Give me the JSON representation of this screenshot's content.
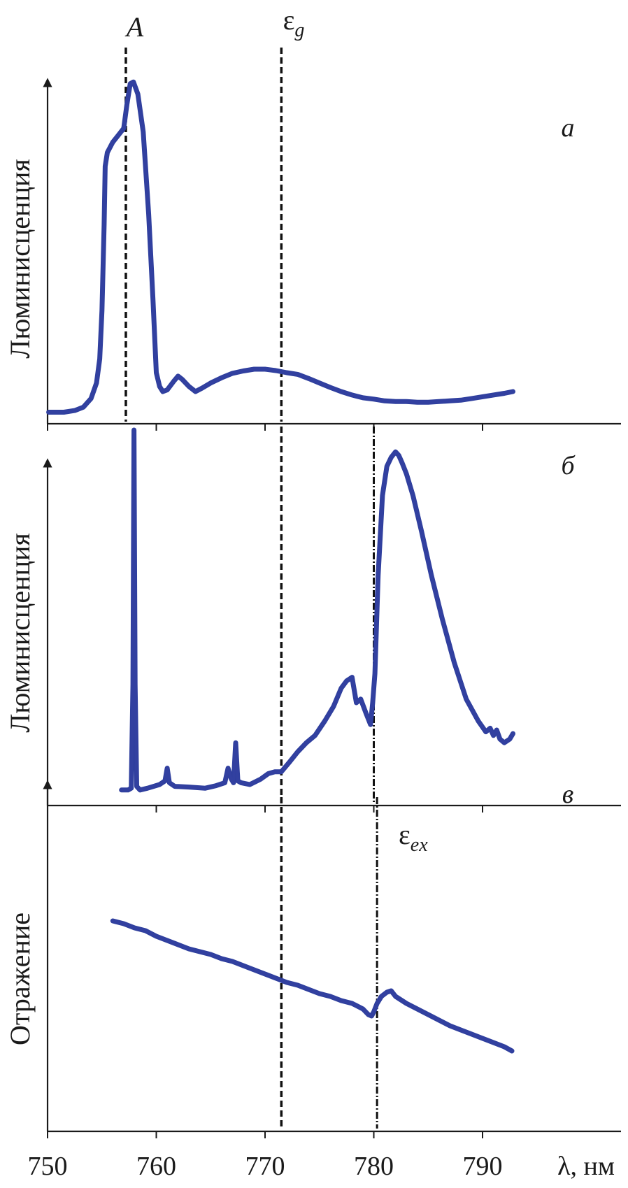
{
  "chart_data": [
    {
      "type": "line",
      "panel_label": "а",
      "ylabel": "Люминисценция",
      "xlabel": "λ, нм",
      "xlim": [
        750,
        820
      ],
      "x_ticks": [
        750,
        760,
        770,
        780,
        790
      ],
      "ylim": [
        0,
        1
      ],
      "markers": [
        {
          "x": 757.2,
          "label": "A",
          "style": "dashed"
        },
        {
          "x": 771.5,
          "label": "ε",
          "subscript": "g",
          "style": "dashed"
        }
      ],
      "series": [
        {
          "x": [
            750.1,
            751.5,
            752.5,
            753.3,
            754.0,
            754.5,
            754.8,
            755.0,
            755.2,
            755.3,
            755.5,
            756.0,
            756.5,
            757.0,
            757.3,
            757.6,
            757.9,
            758.3,
            758.8,
            759.3,
            759.7,
            760.0,
            760.3,
            760.6,
            761.0,
            761.6,
            762.0,
            762.4,
            763.0,
            763.6,
            764.2,
            765.0,
            766.0,
            767.0,
            768.0,
            769.0,
            770.0,
            771.0,
            772.0,
            773.0,
            774.0,
            775.0,
            776.0,
            777.0,
            778.0,
            779.0,
            780.0,
            781.0,
            782.0,
            783.0,
            784.0,
            785.0,
            786.0,
            787.0,
            788.0,
            789.0,
            790.0,
            791.0,
            792.0,
            792.8
          ],
          "y": [
            0.005,
            0.005,
            0.01,
            0.02,
            0.045,
            0.09,
            0.16,
            0.3,
            0.55,
            0.72,
            0.76,
            0.79,
            0.81,
            0.83,
            0.9,
            0.96,
            0.965,
            0.93,
            0.82,
            0.58,
            0.33,
            0.12,
            0.08,
            0.065,
            0.07,
            0.095,
            0.11,
            0.1,
            0.08,
            0.065,
            0.075,
            0.09,
            0.105,
            0.118,
            0.125,
            0.13,
            0.13,
            0.126,
            0.12,
            0.115,
            0.103,
            0.09,
            0.077,
            0.065,
            0.055,
            0.047,
            0.043,
            0.038,
            0.036,
            0.036,
            0.034,
            0.034,
            0.036,
            0.038,
            0.04,
            0.045,
            0.05,
            0.055,
            0.06,
            0.065
          ]
        }
      ]
    },
    {
      "type": "line",
      "panel_label": "б",
      "ylabel": "Люминисценция",
      "xlabel": "λ, нм",
      "xlim": [
        750,
        820
      ],
      "x_ticks": [
        750,
        760,
        770,
        780,
        790
      ],
      "ylim": [
        0,
        1
      ],
      "markers": [
        {
          "x": 771.5,
          "label": "",
          "style": "dashed"
        },
        {
          "x": 780.0,
          "label": "",
          "style": "dashdot"
        }
      ],
      "series": [
        {
          "x": [
            756.8,
            757.4,
            757.7,
            757.85,
            757.95,
            758.05,
            758.2,
            758.5,
            759.2,
            760.3,
            760.8,
            761.0,
            761.2,
            761.7,
            763.0,
            764.5,
            765.5,
            766.3,
            766.6,
            766.9,
            767.1,
            767.3,
            767.5,
            767.8,
            768.6,
            769.6,
            770.3,
            770.9,
            771.5,
            772.2,
            773.0,
            773.8,
            774.6,
            775.5,
            776.3,
            777.0,
            777.5,
            778.0,
            778.4,
            778.8,
            779.3,
            779.7,
            779.9,
            780.1,
            780.4,
            780.8,
            781.2,
            781.6,
            782.0,
            782.3,
            782.6,
            783.0,
            783.6,
            784.4,
            785.3,
            786.3,
            787.4,
            788.5,
            789.6,
            790.3,
            790.7,
            791.0,
            791.3,
            791.6,
            792.0,
            792.5,
            792.8
          ],
          "y": [
            0.01,
            0.01,
            0.015,
            0.3,
            1.0,
            0.3,
            0.02,
            0.01,
            0.015,
            0.025,
            0.035,
            0.07,
            0.03,
            0.02,
            0.018,
            0.015,
            0.022,
            0.03,
            0.07,
            0.04,
            0.03,
            0.14,
            0.035,
            0.03,
            0.025,
            0.04,
            0.055,
            0.06,
            0.06,
            0.085,
            0.115,
            0.14,
            0.16,
            0.2,
            0.24,
            0.29,
            0.31,
            0.32,
            0.25,
            0.26,
            0.22,
            0.19,
            0.25,
            0.33,
            0.6,
            0.82,
            0.9,
            0.925,
            0.94,
            0.93,
            0.91,
            0.88,
            0.82,
            0.72,
            0.6,
            0.48,
            0.36,
            0.26,
            0.2,
            0.17,
            0.18,
            0.16,
            0.175,
            0.15,
            0.14,
            0.15,
            0.165
          ]
        }
      ]
    },
    {
      "type": "line",
      "panel_label": "в",
      "ylabel": "Отражение",
      "xlabel": "λ, нм",
      "xlim": [
        750,
        820
      ],
      "x_ticks": [
        750,
        760,
        770,
        780,
        790
      ],
      "ylim": [
        0,
        1
      ],
      "markers": [
        {
          "x": 771.5,
          "label": "",
          "style": "dashed"
        },
        {
          "x": 780.3,
          "label": "ε",
          "subscript": "ex",
          "style": "dashdot"
        }
      ],
      "series": [
        {
          "x": [
            756.0,
            757.0,
            758.0,
            759.0,
            760.0,
            761.0,
            762.0,
            763.0,
            764.0,
            765.0,
            766.0,
            767.0,
            768.0,
            769.0,
            770.0,
            771.0,
            772.0,
            773.0,
            774.0,
            775.0,
            776.0,
            777.0,
            778.0,
            779.0,
            779.5,
            779.8,
            780.0,
            780.3,
            780.7,
            781.2,
            781.6,
            782.0,
            783.0,
            784.0,
            785.0,
            786.0,
            787.0,
            788.0,
            789.0,
            790.0,
            791.0,
            792.0,
            792.7
          ],
          "y": [
            0.845,
            0.835,
            0.82,
            0.81,
            0.79,
            0.775,
            0.76,
            0.745,
            0.735,
            0.725,
            0.71,
            0.7,
            0.685,
            0.67,
            0.655,
            0.64,
            0.625,
            0.615,
            0.6,
            0.585,
            0.575,
            0.56,
            0.55,
            0.53,
            0.51,
            0.505,
            0.52,
            0.55,
            0.575,
            0.59,
            0.595,
            0.575,
            0.55,
            0.53,
            0.51,
            0.49,
            0.47,
            0.455,
            0.44,
            0.425,
            0.41,
            0.395,
            0.38
          ]
        }
      ]
    }
  ]
}
